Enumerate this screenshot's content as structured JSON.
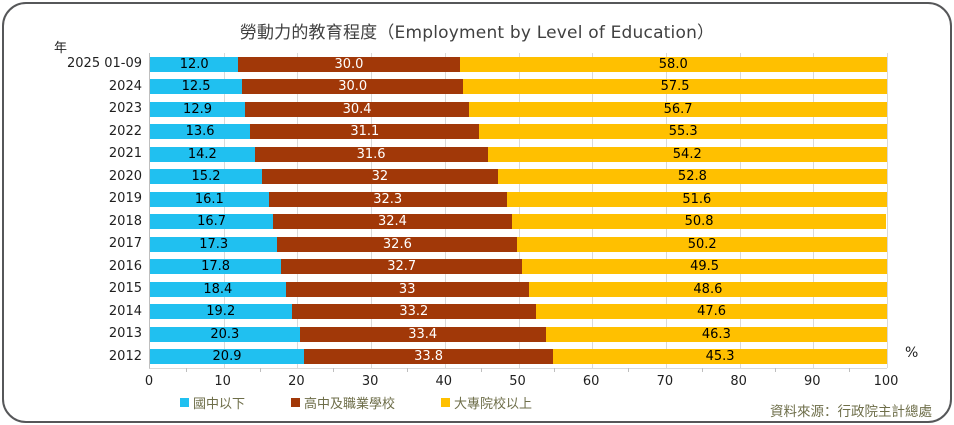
{
  "title": "勞動力的教育程度（Employment by Level of Education）",
  "y_axis_label": "年",
  "x_axis_unit": "%",
  "source": "資料來源：行政院主計總處",
  "colors": {
    "junior_high_below": "#20C0F0",
    "senior_high_vocational": "#A13808",
    "college_above": "#FFC000",
    "gridline": "#D9D9D9",
    "legend_text": "#6E6E49",
    "title_text": "#404040"
  },
  "chart_data": {
    "type": "bar",
    "orientation": "horizontal-stacked",
    "title": "勞動力的教育程度（Employment by Level of Education）",
    "xlabel": "%",
    "ylabel": "年",
    "xlim": [
      0,
      100
    ],
    "x_ticks": [
      0,
      10,
      20,
      30,
      40,
      50,
      60,
      70,
      80,
      90,
      100
    ],
    "grid": true,
    "legend_position": "bottom",
    "categories": [
      "2025 01-09",
      "2024",
      "2023",
      "2022",
      "2021",
      "2020",
      "2019",
      "2018",
      "2017",
      "2016",
      "2015",
      "2014",
      "2013",
      "2012"
    ],
    "series": [
      {
        "name": "國中以下",
        "color": "#20C0F0",
        "label_color": "dark",
        "values": [
          12.0,
          12.5,
          12.9,
          13.6,
          14.2,
          15.2,
          16.1,
          16.7,
          17.3,
          17.8,
          18.4,
          19.2,
          20.3,
          20.9
        ],
        "labels": [
          "12.0",
          "12.5",
          "12.9",
          "13.6",
          "14.2",
          "15.2",
          "16.1",
          "16.7",
          "17.3",
          "17.8",
          "18.4",
          "19.2",
          "20.3",
          "20.9"
        ]
      },
      {
        "name": "高中及職業學校",
        "color": "#A13808",
        "label_color": "light",
        "values": [
          30.0,
          30.0,
          30.4,
          31.1,
          31.6,
          32,
          32.3,
          32.4,
          32.6,
          32.7,
          33,
          33.2,
          33.4,
          33.8
        ],
        "labels": [
          "30.0",
          "30.0",
          "30.4",
          "31.1",
          "31.6",
          "32",
          "32.3",
          "32.4",
          "32.6",
          "32.7",
          "33",
          "33.2",
          "33.4",
          "33.8"
        ]
      },
      {
        "name": "大專院校以上",
        "color": "#FFC000",
        "label_color": "dark",
        "values": [
          58.0,
          57.5,
          56.7,
          55.3,
          54.2,
          52.8,
          51.6,
          50.8,
          50.2,
          49.5,
          48.6,
          47.6,
          46.3,
          45.3
        ],
        "labels": [
          "58.0",
          "57.5",
          "56.7",
          "55.3",
          "54.2",
          "52.8",
          "51.6",
          "50.8",
          "50.2",
          "49.5",
          "48.6",
          "47.6",
          "46.3",
          "45.3"
        ]
      }
    ]
  }
}
